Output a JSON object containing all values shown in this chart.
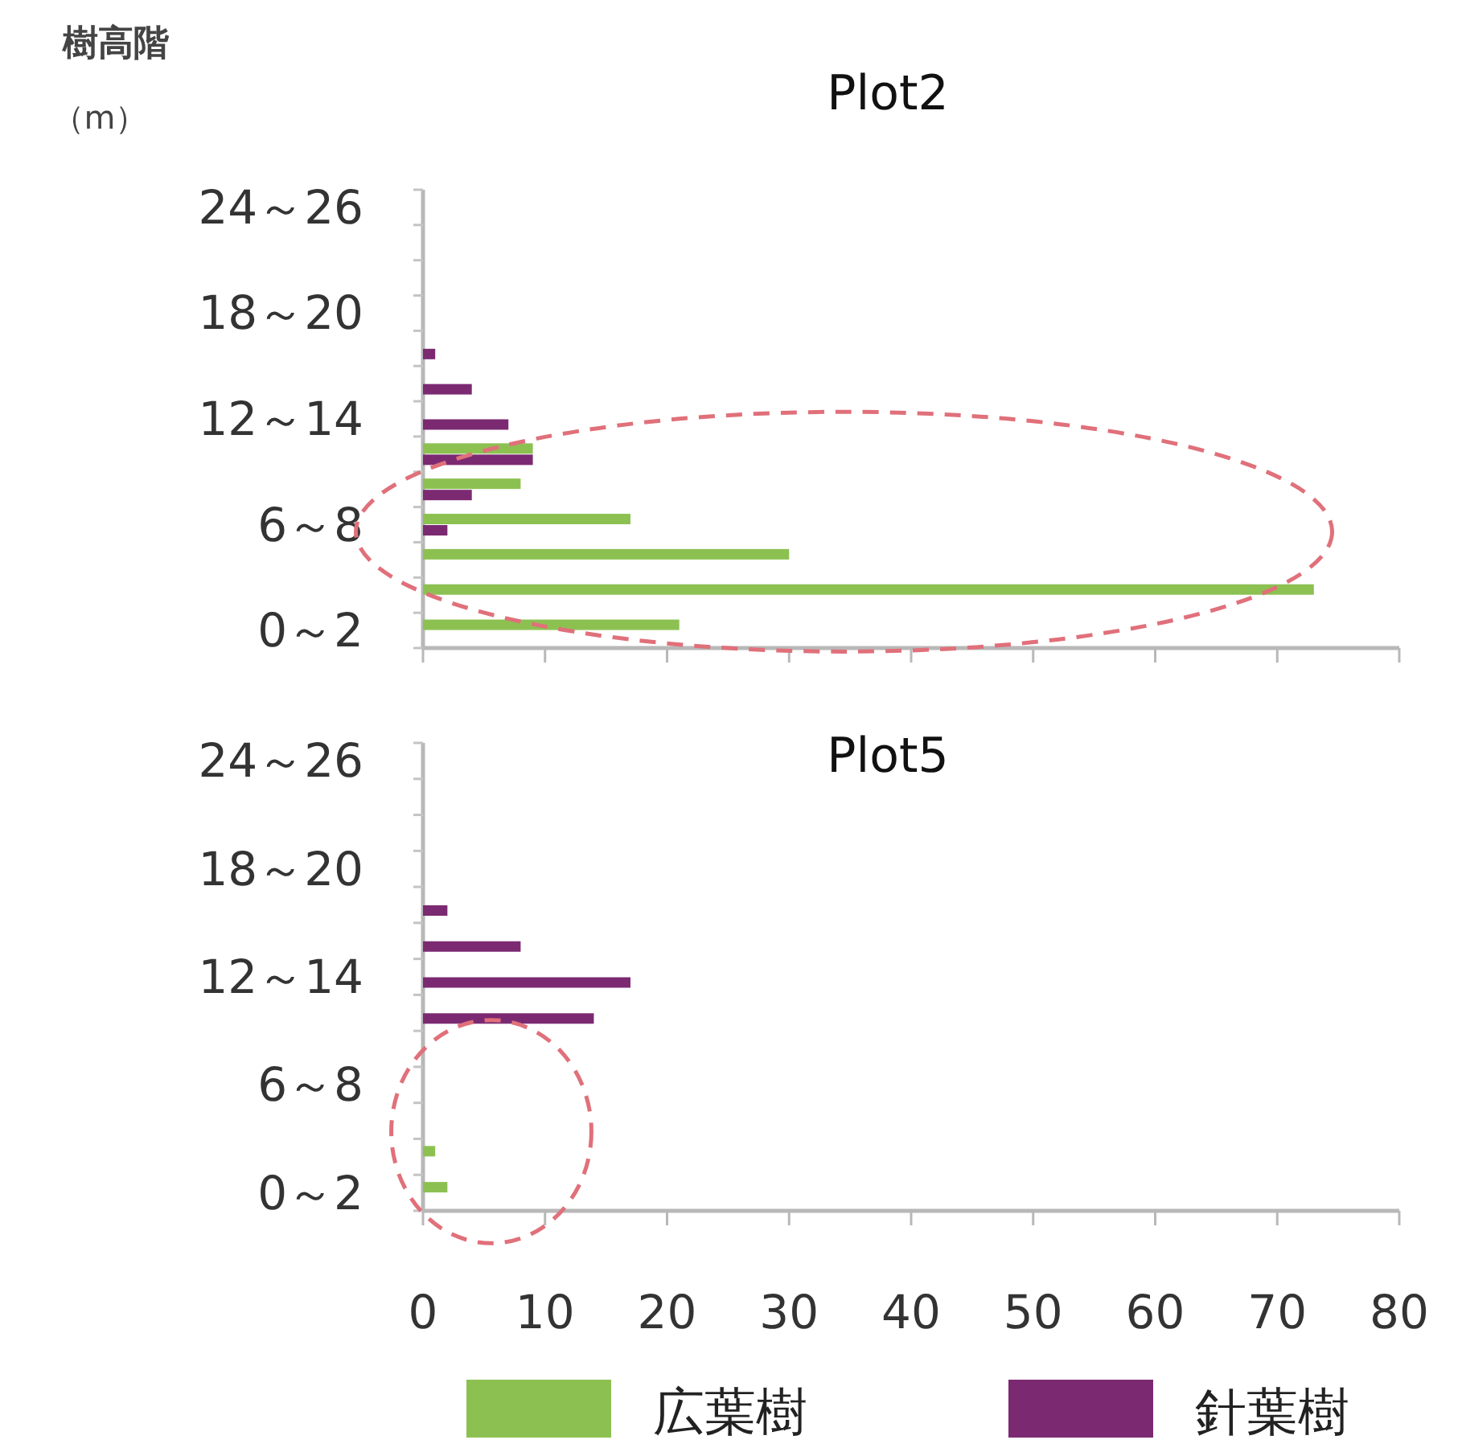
{
  "chart_data": [
    {
      "type": "bar",
      "orientation": "horizontal",
      "title": "Plot2",
      "ylabel": "樹高階（m）",
      "categories": [
        "24～26",
        null,
        null,
        "18～20",
        null,
        null,
        "12～14",
        null,
        null,
        "6～8",
        null,
        null,
        "0～2"
      ],
      "series": [
        {
          "color": "#8cc152",
          "values": [
            0,
            0,
            0,
            0,
            0,
            0,
            0,
            9,
            8,
            17,
            30,
            73,
            21
          ]
        },
        {
          "color": "#7b2a72",
          "values": [
            0,
            0,
            0,
            0,
            1,
            4,
            7,
            9,
            4,
            2,
            0,
            0,
            0
          ]
        }
      ],
      "xlim": [
        0,
        80
      ],
      "xticks": [
        0,
        10,
        20,
        30,
        40,
        50,
        60,
        70,
        80
      ],
      "tick_labels": "y"
    },
    {
      "type": "bar",
      "orientation": "horizontal",
      "title": "Plot5",
      "categories": [
        "24～26",
        null,
        null,
        "18～20",
        null,
        null,
        "12～14",
        null,
        null,
        "6～8",
        null,
        null,
        "0～2"
      ],
      "series": [
        {
          "name": "広葉樹",
          "color": "#8cc152",
          "values": [
            0,
            0,
            0,
            0,
            0,
            0,
            0,
            0,
            0,
            0,
            0,
            1,
            2
          ]
        },
        {
          "name": "針葉樹",
          "color": "#7b2a72",
          "values": [
            0,
            0,
            0,
            0,
            2,
            8,
            17,
            14,
            0,
            0,
            0,
            0,
            0
          ]
        }
      ],
      "xlim": [
        0,
        80
      ],
      "xticks": [
        0,
        10,
        20,
        30,
        40,
        50,
        60,
        70,
        80
      ],
      "legend": "bottom"
    }
  ]
}
